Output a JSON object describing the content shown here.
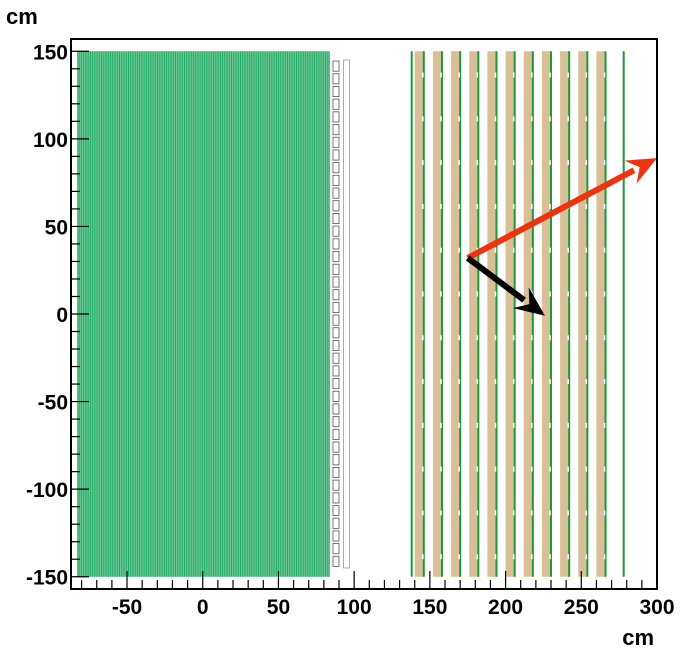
{
  "chart_data": {
    "type": "diagram",
    "x_axis": {
      "unit_label": "cm",
      "range": [
        -87,
        300
      ],
      "ticks": [
        -50,
        0,
        50,
        100,
        150,
        200,
        250,
        300
      ],
      "tick_labels": [
        "-50",
        "0",
        "50",
        "100",
        "150",
        "200",
        "250",
        "300"
      ],
      "minor_step": 10
    },
    "y_axis": {
      "unit_label": "cm",
      "range": [
        -157,
        157
      ],
      "ticks": [
        -150,
        -100,
        -50,
        0,
        50,
        100,
        150
      ],
      "tick_labels": [
        "-150",
        "-100",
        "-50",
        "0",
        "50",
        "100",
        "150"
      ],
      "minor_step": 10
    },
    "green_block": {
      "x_range": [
        -83,
        84
      ],
      "y_range": [
        -150,
        150
      ],
      "line_count": 140,
      "color": "#22aa66"
    },
    "small_box_columns": {
      "x_centers": [
        88,
        95
      ],
      "y_range": [
        -145,
        145
      ],
      "box_count": 40
    },
    "tan_slabs": {
      "x_starts": [
        140,
        152,
        164,
        176,
        188,
        200,
        212,
        224,
        236,
        248,
        260
      ],
      "width": 6,
      "y_range": [
        -150,
        150
      ],
      "color": "#d8bf98"
    },
    "green_planes": {
      "x_positions": [
        138,
        146,
        158,
        170,
        182,
        194,
        206,
        218,
        230,
        242,
        254,
        266,
        278
      ],
      "y_range": [
        -150,
        150
      ],
      "color": "#1a9a3a"
    },
    "arrows": [
      {
        "name": "red",
        "color": "#ee3311",
        "from": [
          175,
          32
        ],
        "to": [
          300,
          89
        ]
      },
      {
        "name": "black",
        "color": "#000000",
        "from": [
          175,
          32
        ],
        "to": [
          226,
          -1
        ]
      }
    ]
  }
}
